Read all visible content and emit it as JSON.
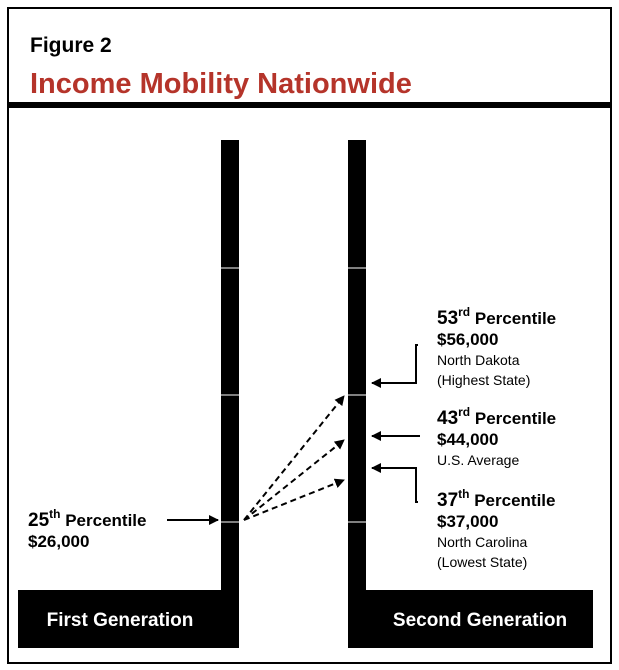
{
  "header": {
    "figure": "Figure 2",
    "title": "Income Mobility Nationwide"
  },
  "columns": [
    "First Generation",
    "Second Generation"
  ],
  "first": {
    "number": "25",
    "suffix": "th",
    "text": "Percentile",
    "amount": "$26,000"
  },
  "second": [
    {
      "number": "53",
      "suffix": "rd",
      "text": "Percentile",
      "amount": "$56,000",
      "notes": [
        "North Dakota",
        "(Highest State)"
      ]
    },
    {
      "number": "43",
      "suffix": "rd",
      "text": "Percentile",
      "amount": "$44,000",
      "notes": [
        "U.S. Average"
      ]
    },
    {
      "number": "37",
      "suffix": "th",
      "text": "Percentile",
      "amount": "$37,000",
      "notes": [
        "North Carolina",
        "(Lowest State)"
      ]
    }
  ]
}
